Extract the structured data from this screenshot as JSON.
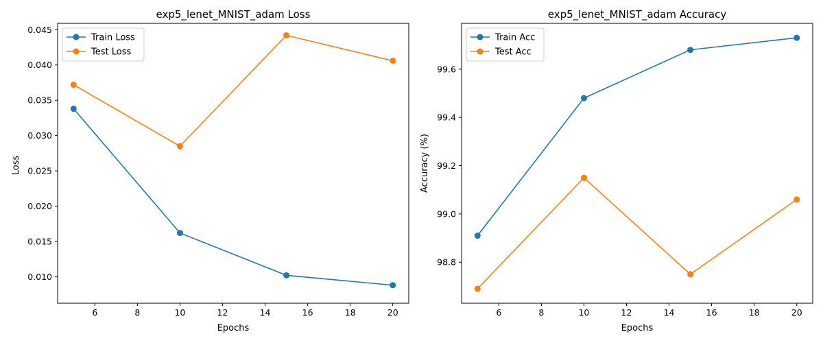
{
  "chart_data": [
    {
      "type": "line",
      "title": "exp5_lenet_MNIST_adam Loss",
      "xlabel": "Epochs",
      "ylabel": "Loss",
      "x": [
        5,
        10,
        15,
        20
      ],
      "xlim": [
        4.25,
        20.75
      ],
      "ylim": [
        0.00625,
        0.0459
      ],
      "xticks": [
        6,
        8,
        10,
        12,
        14,
        16,
        18,
        20
      ],
      "yticks": [
        0.01,
        0.015,
        0.02,
        0.025,
        0.03,
        0.035,
        0.04,
        0.045
      ],
      "tick_decimals": 3,
      "grid": false,
      "legend_position": "upper-left",
      "series": [
        {
          "name": "Train Loss",
          "color": "#1f77b4",
          "values": [
            0.0338,
            0.0162,
            0.0102,
            0.0088
          ]
        },
        {
          "name": "Test Loss",
          "color": "#ff7f0e",
          "values": [
            0.0372,
            0.0285,
            0.0442,
            0.0406
          ]
        }
      ]
    },
    {
      "type": "line",
      "title": "exp5_lenet_MNIST_adam Accuracy",
      "xlabel": "Epochs",
      "ylabel": "Accuracy (%)",
      "x": [
        5,
        10,
        15,
        20
      ],
      "xlim": [
        4.25,
        20.75
      ],
      "ylim": [
        98.63,
        99.79
      ],
      "xticks": [
        6,
        8,
        10,
        12,
        14,
        16,
        18,
        20
      ],
      "yticks": [
        98.8,
        99.0,
        99.2,
        99.4,
        99.6
      ],
      "tick_decimals": 1,
      "grid": false,
      "legend_position": "upper-left",
      "series": [
        {
          "name": "Train Acc",
          "color": "#1f77b4",
          "values": [
            98.91,
            99.48,
            99.68,
            99.73
          ]
        },
        {
          "name": "Test Acc",
          "color": "#ff7f0e",
          "values": [
            98.69,
            99.15,
            98.75,
            99.06
          ]
        }
      ]
    }
  ]
}
